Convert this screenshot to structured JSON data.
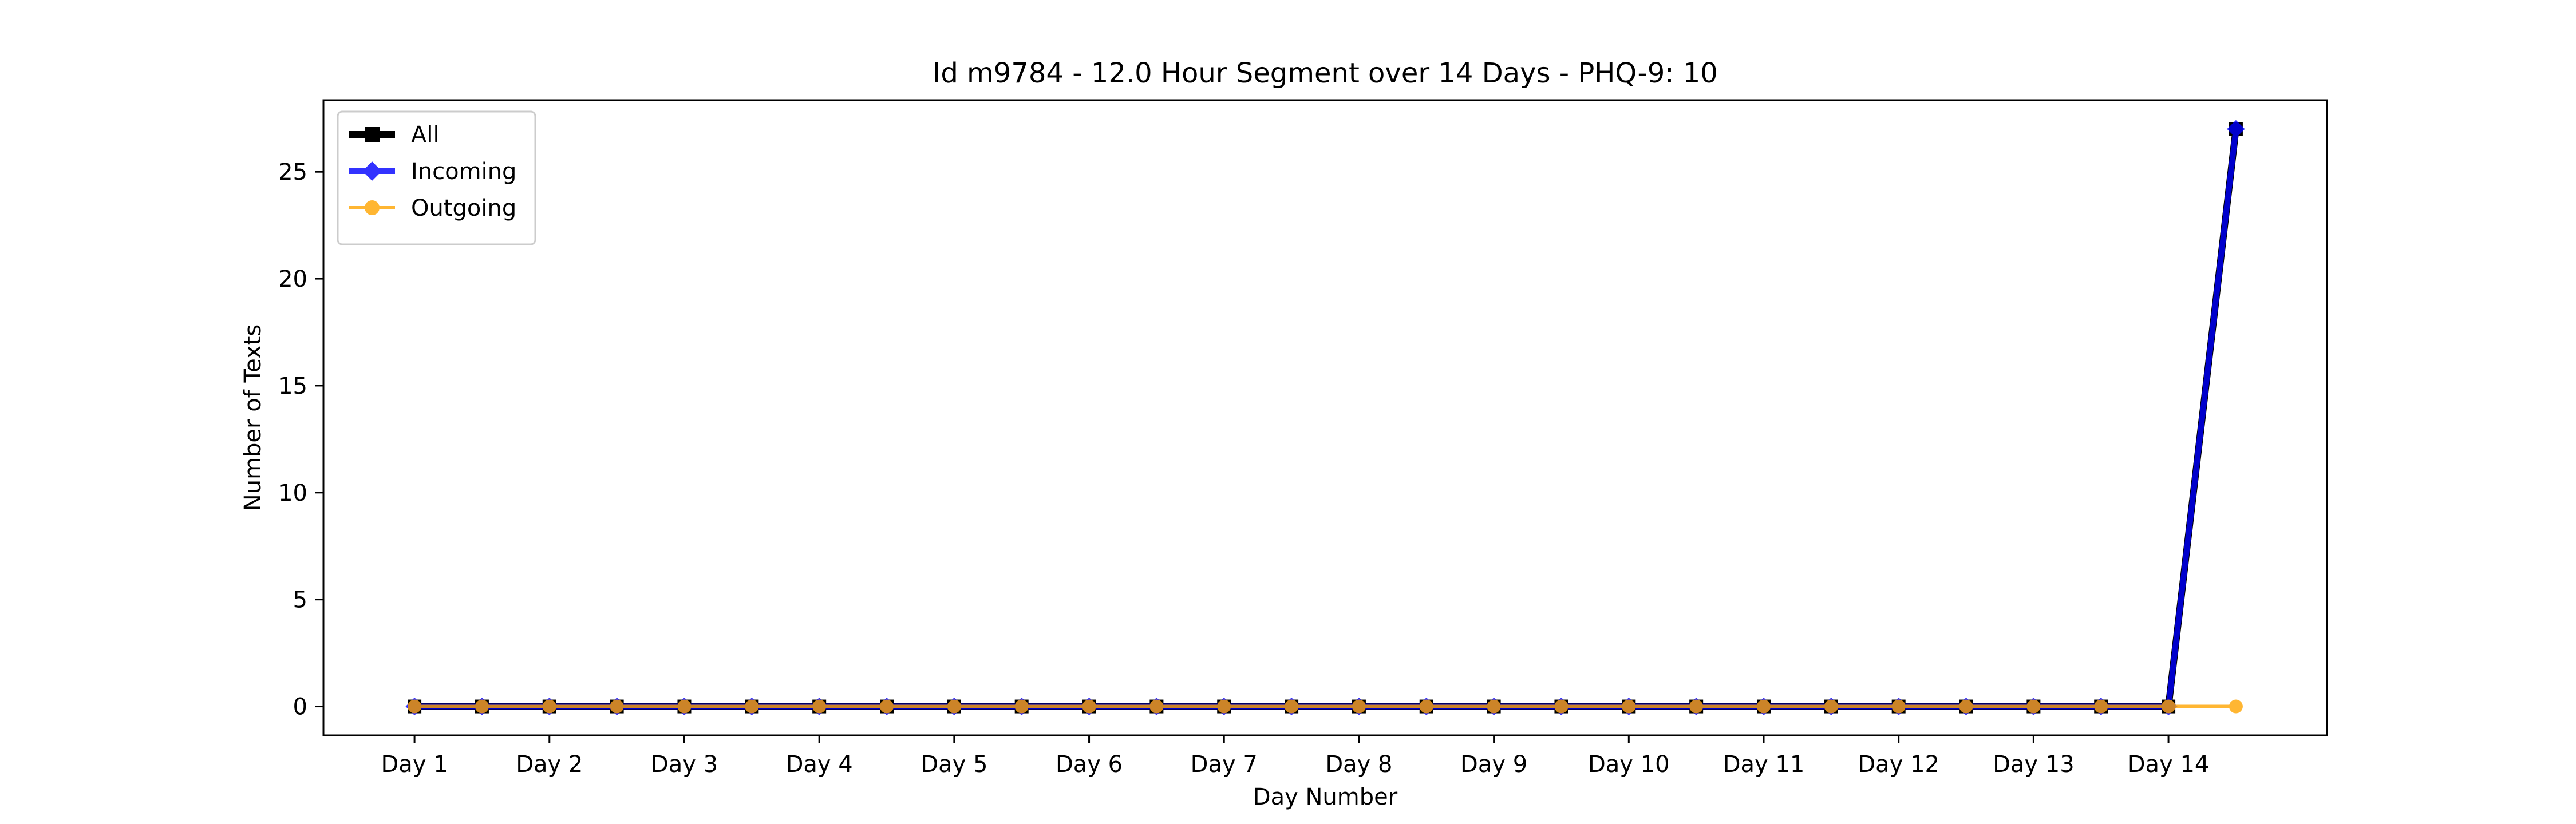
{
  "chart_data": {
    "type": "line",
    "title": "Id m9784 - 12.0 Hour Segment over 14 Days - PHQ-9: 10",
    "xlabel": "Day Number",
    "ylabel": "Number of Texts",
    "x": [
      1,
      2,
      3,
      4,
      5,
      6,
      7,
      8,
      9,
      10,
      11,
      12,
      13,
      14,
      15,
      16,
      17,
      18,
      19,
      20,
      21,
      22,
      23,
      24,
      25,
      26,
      27,
      28
    ],
    "xlim": [
      -0.35,
      29.35
    ],
    "ylim": [
      -1.35,
      28.35
    ],
    "xticks": [
      1,
      3,
      5,
      7,
      9,
      11,
      13,
      15,
      17,
      19,
      21,
      23,
      25,
      27
    ],
    "xtick_labels": [
      "Day 1",
      "Day 2",
      "Day 3",
      "Day 4",
      "Day 5",
      "Day 6",
      "Day 7",
      "Day 8",
      "Day 9",
      "Day 10",
      "Day 11",
      "Day 12",
      "Day 13",
      "Day 14"
    ],
    "yticks": [
      0,
      5,
      10,
      15,
      20,
      25
    ],
    "ytick_labels": [
      "0",
      "5",
      "10",
      "15",
      "20",
      "25"
    ],
    "grid": false,
    "legend_position": "upper-left",
    "series": [
      {
        "name": "All",
        "color": "#000000",
        "marker": "square",
        "values": [
          0,
          0,
          0,
          0,
          0,
          0,
          0,
          0,
          0,
          0,
          0,
          0,
          0,
          0,
          0,
          0,
          0,
          0,
          0,
          0,
          0,
          0,
          0,
          0,
          0,
          0,
          0,
          27
        ]
      },
      {
        "name": "Incoming",
        "color": "#0000ff",
        "marker": "diamond",
        "values": [
          0,
          0,
          0,
          0,
          0,
          0,
          0,
          0,
          0,
          0,
          0,
          0,
          0,
          0,
          0,
          0,
          0,
          0,
          0,
          0,
          0,
          0,
          0,
          0,
          0,
          0,
          0,
          27
        ]
      },
      {
        "name": "Outgoing",
        "color": "#ffa500",
        "marker": "circle",
        "values": [
          0,
          0,
          0,
          0,
          0,
          0,
          0,
          0,
          0,
          0,
          0,
          0,
          0,
          0,
          0,
          0,
          0,
          0,
          0,
          0,
          0,
          0,
          0,
          0,
          0,
          0,
          0,
          0
        ]
      }
    ]
  }
}
